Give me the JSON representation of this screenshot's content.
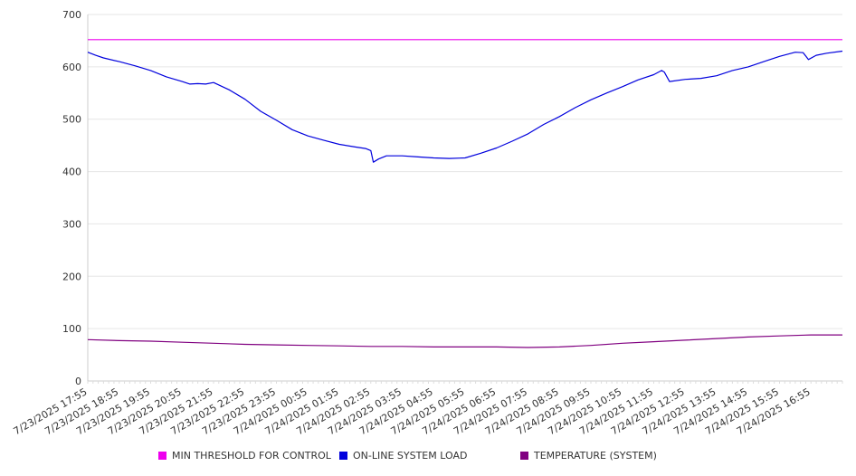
{
  "chart_data": {
    "type": "line",
    "y_ticks": [
      "0",
      "100",
      "200",
      "300",
      "400",
      "500",
      "600",
      "700"
    ],
    "ylim": [
      0,
      700
    ],
    "x_tick_labels": [
      "7/23/2025 17:55",
      "7/23/2025 18:55",
      "7/23/2025 19:55",
      "7/23/2025 20:55",
      "7/23/2025 21:55",
      "7/23/2025 22:55",
      "7/23/2025 23:55",
      "7/24/2025 00:55",
      "7/24/2025 01:55",
      "7/24/2025 02:55",
      "7/24/2025 03:55",
      "7/24/2025 04:55",
      "7/24/2025 05:55",
      "7/24/2025 06:55",
      "7/24/2025 07:55",
      "7/24/2025 08:55",
      "7/24/2025 09:55",
      "7/24/2025 10:55",
      "7/24/2025 11:55",
      "7/24/2025 12:55",
      "7/24/2025 13:55",
      "7/24/2025 14:55",
      "7/24/2025 15:55",
      "7/24/2025 16:55"
    ],
    "x_time_range": [
      "7/23/2025 17:55",
      "7/24/2025 17:55"
    ],
    "grid": true,
    "legend_position": "bottom",
    "series": [
      {
        "name": "MIN THRESHOLD FOR CONTROL",
        "color": "#ee00ee",
        "points": [
          [
            "7/23/2025 17:55",
            652
          ],
          [
            "7/24/2025 17:55",
            652
          ]
        ]
      },
      {
        "name": "ON-LINE SYSTEM LOAD",
        "color": "#0000dd",
        "points": [
          [
            "7/23/2025 17:55",
            628
          ],
          [
            "7/23/2025 18:10",
            622
          ],
          [
            "7/23/2025 18:25",
            617
          ],
          [
            "7/23/2025 18:55",
            610
          ],
          [
            "7/23/2025 19:25",
            602
          ],
          [
            "7/23/2025 19:55",
            593
          ],
          [
            "7/23/2025 20:25",
            581
          ],
          [
            "7/23/2025 20:55",
            572
          ],
          [
            "7/23/2025 21:10",
            567
          ],
          [
            "7/23/2025 21:25",
            568
          ],
          [
            "7/23/2025 21:40",
            567
          ],
          [
            "7/23/2025 21:55",
            570
          ],
          [
            "7/23/2025 22:25",
            556
          ],
          [
            "7/23/2025 22:55",
            538
          ],
          [
            "7/23/2025 23:25",
            515
          ],
          [
            "7/23/2025 23:55",
            498
          ],
          [
            "7/24/2025 00:25",
            480
          ],
          [
            "7/24/2025 00:55",
            468
          ],
          [
            "7/24/2025 01:25",
            460
          ],
          [
            "7/24/2025 01:55",
            452
          ],
          [
            "7/24/2025 02:25",
            447
          ],
          [
            "7/24/2025 02:45",
            444
          ],
          [
            "7/24/2025 02:55",
            440
          ],
          [
            "7/24/2025 03:00",
            418
          ],
          [
            "7/24/2025 03:10",
            424
          ],
          [
            "7/24/2025 03:25",
            430
          ],
          [
            "7/24/2025 03:55",
            430
          ],
          [
            "7/24/2025 04:25",
            428
          ],
          [
            "7/24/2025 04:55",
            426
          ],
          [
            "7/24/2025 05:25",
            425
          ],
          [
            "7/24/2025 05:55",
            426
          ],
          [
            "7/24/2025 06:25",
            435
          ],
          [
            "7/24/2025 06:55",
            445
          ],
          [
            "7/24/2025 07:25",
            458
          ],
          [
            "7/24/2025 07:55",
            472
          ],
          [
            "7/24/2025 08:25",
            490
          ],
          [
            "7/24/2025 08:55",
            505
          ],
          [
            "7/24/2025 09:25",
            522
          ],
          [
            "7/24/2025 09:55",
            537
          ],
          [
            "7/24/2025 10:25",
            550
          ],
          [
            "7/24/2025 10:55",
            562
          ],
          [
            "7/24/2025 11:25",
            575
          ],
          [
            "7/24/2025 11:55",
            585
          ],
          [
            "7/24/2025 12:10",
            593
          ],
          [
            "7/24/2025 12:15",
            590
          ],
          [
            "7/24/2025 12:25",
            572
          ],
          [
            "7/24/2025 12:55",
            576
          ],
          [
            "7/24/2025 13:25",
            578
          ],
          [
            "7/24/2025 13:55",
            583
          ],
          [
            "7/24/2025 14:25",
            593
          ],
          [
            "7/24/2025 14:55",
            600
          ],
          [
            "7/24/2025 15:25",
            610
          ],
          [
            "7/24/2025 15:55",
            620
          ],
          [
            "7/24/2025 16:25",
            628
          ],
          [
            "7/24/2025 16:40",
            627
          ],
          [
            "7/24/2025 16:50",
            614
          ],
          [
            "7/24/2025 17:05",
            622
          ],
          [
            "7/24/2025 17:25",
            626
          ],
          [
            "7/24/2025 17:55",
            630
          ]
        ]
      },
      {
        "name": "TEMPERATURE (SYSTEM)",
        "color": "#800080",
        "points": [
          [
            "7/23/2025 17:55",
            79
          ],
          [
            "7/23/2025 18:55",
            77
          ],
          [
            "7/23/2025 19:55",
            76
          ],
          [
            "7/23/2025 20:55",
            74
          ],
          [
            "7/23/2025 21:55",
            72
          ],
          [
            "7/23/2025 22:55",
            70
          ],
          [
            "7/23/2025 23:55",
            69
          ],
          [
            "7/24/2025 00:55",
            68
          ],
          [
            "7/24/2025 01:55",
            67
          ],
          [
            "7/24/2025 02:55",
            66
          ],
          [
            "7/24/2025 03:55",
            66
          ],
          [
            "7/24/2025 04:55",
            65
          ],
          [
            "7/24/2025 05:55",
            65
          ],
          [
            "7/24/2025 06:55",
            65
          ],
          [
            "7/24/2025 07:55",
            64
          ],
          [
            "7/24/2025 08:55",
            65
          ],
          [
            "7/24/2025 09:55",
            68
          ],
          [
            "7/24/2025 10:55",
            72
          ],
          [
            "7/24/2025 11:55",
            75
          ],
          [
            "7/24/2025 12:55",
            78
          ],
          [
            "7/24/2025 13:55",
            81
          ],
          [
            "7/24/2025 14:55",
            84
          ],
          [
            "7/24/2025 15:55",
            86
          ],
          [
            "7/24/2025 16:55",
            88
          ],
          [
            "7/24/2025 17:55",
            88
          ]
        ]
      }
    ]
  },
  "legend": {
    "items": [
      {
        "label": "MIN THRESHOLD FOR CONTROL",
        "color": "#ee00ee"
      },
      {
        "label": "ON-LINE SYSTEM LOAD",
        "color": "#0000dd"
      },
      {
        "label": "TEMPERATURE (SYSTEM)",
        "color": "#800080"
      }
    ]
  }
}
